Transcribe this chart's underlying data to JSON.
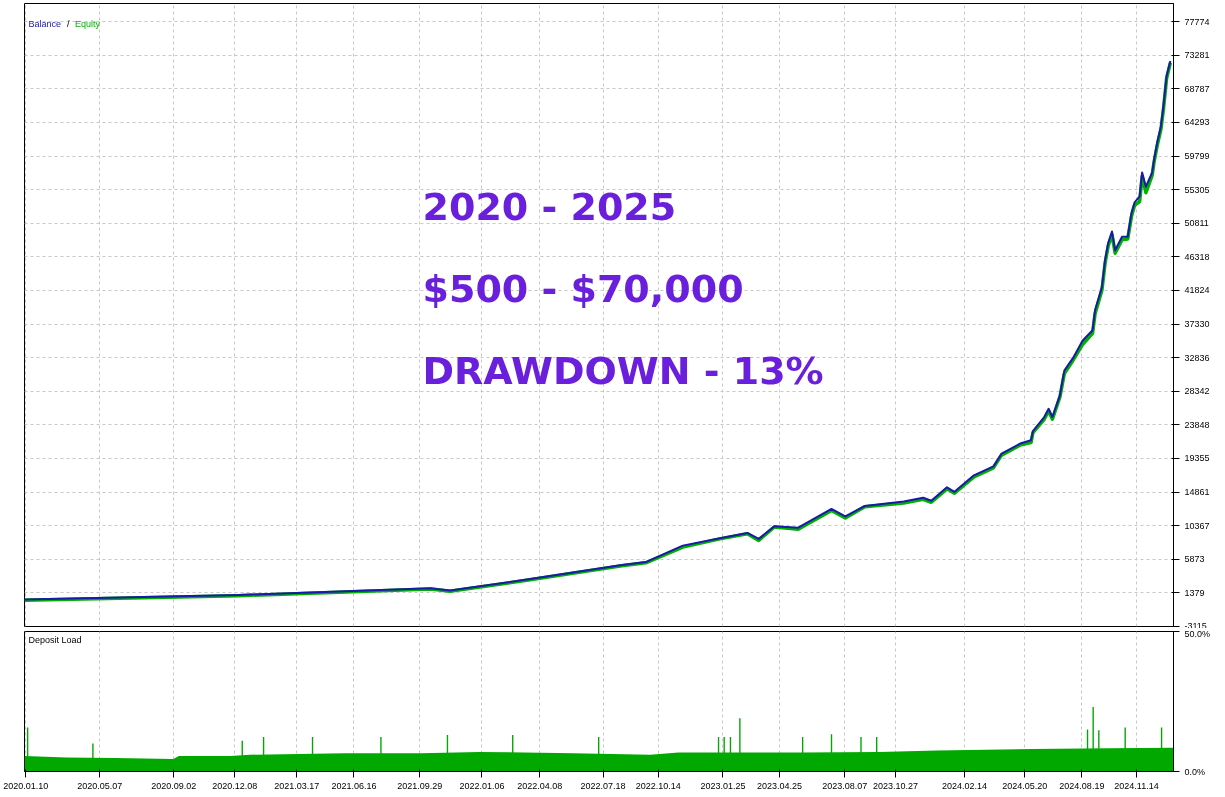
{
  "chart_data": [
    {
      "type": "line",
      "legend": "top left",
      "grid": true,
      "tick_labels": "y",
      "annotations": [
        "/",
        "2020 - 2025",
        "$500 - $70,000",
        "DRAWDOWN -  13%"
      ],
      "x": [
        "2020-01-08",
        "2020-12-14",
        "2021-10-16",
        "2021-11-16",
        "2022-03-21",
        "2022-08-17",
        "2022-09-24",
        "2022-11-22",
        "2023-01-20",
        "2023-03-05",
        "2023-03-23",
        "2023-04-17",
        "2023-05-25",
        "2023-07-17",
        "2023-08-08",
        "2023-09-08",
        "2023-11-09",
        "2023-12-10",
        "2023-12-23",
        "2024-01-17",
        "2024-01-29",
        "2024-02-29",
        "2024-03-31",
        "2024-04-13",
        "2024-05-14",
        "2024-05-30",
        "2024-06-02",
        "2024-06-20",
        "2024-06-27",
        "2024-07-03",
        "2024-07-15",
        "2024-07-22",
        "2024-08-05",
        "2024-08-20",
        "2024-09-05",
        "2024-09-09",
        "2024-09-20",
        "2024-09-25",
        "2024-09-30",
        "2024-10-06",
        "2024-10-11",
        "2024-10-22",
        "2024-10-31",
        "2024-11-06",
        "2024-11-11",
        "2024-11-19",
        "2024-11-23",
        "2024-11-29",
        "2024-12-09",
        "2024-12-12",
        "2024-12-17",
        "2024-12-23",
        "2024-12-27",
        "2025-01-01",
        "2025-01-07"
      ],
      "series": [
        {
          "name": "Equity",
          "color": "#00b000",
          "values": [
            400,
            1000,
            1900,
            1600,
            3100,
            5000,
            5400,
            7500,
            8600,
            9300,
            8400,
            10200,
            9900,
            12400,
            11400,
            12900,
            13400,
            13900,
            13500,
            15300,
            14700,
            16900,
            18100,
            19800,
            21200,
            21500,
            22800,
            24600,
            25700,
            24600,
            27600,
            30700,
            32500,
            34600,
            36100,
            38700,
            41900,
            45500,
            47800,
            49300,
            46800,
            48600,
            48700,
            51700,
            53200,
            53700,
            57100,
            54900,
            57200,
            59000,
            61200,
            63400,
            66100,
            70200,
            72300
          ]
        },
        {
          "name": "Balance",
          "color": "#1a1aa8",
          "values": [
            500,
            1100,
            2000,
            1700,
            3200,
            5100,
            5500,
            7700,
            8700,
            9400,
            8600,
            10300,
            10100,
            12600,
            11600,
            13000,
            13600,
            14100,
            13700,
            15500,
            14900,
            17100,
            18300,
            20000,
            21400,
            21800,
            23000,
            24900,
            26000,
            24900,
            27800,
            31100,
            32800,
            35100,
            36500,
            39200,
            42300,
            45900,
            48200,
            49700,
            47200,
            49000,
            49000,
            52200,
            53600,
            54400,
            57600,
            55700,
            57600,
            59300,
            61600,
            63800,
            66500,
            70500,
            72500
          ]
        }
      ],
      "xlim": [
        "2020-01-08",
        "2025-01-12"
      ],
      "ylim": [
        -3115,
        80200
      ],
      "yticks": [
        -3115,
        1379,
        5873,
        10367,
        14861,
        19355,
        23848,
        28342,
        32836,
        37330,
        41824,
        46318,
        50811,
        55305,
        59799,
        64293,
        68787,
        73281,
        77774
      ]
    },
    {
      "type": "area",
      "title": "Deposit Load",
      "grid": true,
      "series": [
        {
          "color": "#00a800",
          "x": [
            "2020-01-08",
            "2020-03-15",
            "2020-06-01",
            "2020-09-01",
            "2020-09-10",
            "2020-12-01",
            "2021-01-01",
            "2021-06-01",
            "2021-10-01",
            "2022-01-01",
            "2022-06-01",
            "2022-10-01",
            "2022-11-15",
            "2023-06-01",
            "2023-10-01",
            "2024-01-01",
            "2024-06-01",
            "2024-10-01",
            "2025-01-12"
          ],
          "values": [
            5.5,
            5.0,
            4.8,
            4.5,
            5.5,
            5.5,
            6.0,
            6.5,
            6.5,
            7.0,
            6.5,
            6.0,
            6.8,
            6.8,
            7.0,
            7.5,
            8.0,
            8.3,
            8.5
          ]
        },
        {
          "type": "bar",
          "color": "#00a800",
          "x": [
            "2020-01-13",
            "2020-04-26",
            "2020-12-20",
            "2021-01-23",
            "2021-04-11",
            "2021-07-29",
            "2021-11-12",
            "2022-02-24",
            "2022-07-11",
            "2023-01-18",
            "2023-01-27",
            "2023-02-06",
            "2023-02-21",
            "2023-06-01",
            "2023-07-17",
            "2023-09-02",
            "2023-09-27",
            "2024-08-28",
            "2024-09-06",
            "2024-09-15",
            "2024-10-27",
            "2024-12-24"
          ],
          "values": [
            15.7,
            10,
            11,
            12.3,
            12.3,
            12.3,
            13,
            13,
            12.3,
            12.3,
            12.3,
            12.3,
            19,
            12.3,
            13.3,
            12.3,
            12.3,
            15,
            23,
            14.7,
            15.7,
            15.7
          ]
        }
      ],
      "xlim": [
        "2020-01-08",
        "2025-01-12"
      ],
      "xticks": [
        {
          "value": "2020-01-10",
          "label": "2020.01.10"
        },
        {
          "value": "2020-05-07",
          "label": "2020.05.07"
        },
        {
          "value": "2020-09-02",
          "label": "2020.09.02"
        },
        {
          "value": "2020-12-08",
          "label": "2020.12.08"
        },
        {
          "value": "2021-03-17",
          "label": "2021.03.17"
        },
        {
          "value": "2021-06-16",
          "label": "2021.06.16"
        },
        {
          "value": "2021-09-29",
          "label": "2021.09.29"
        },
        {
          "value": "2022-01-06",
          "label": "2022.01.06"
        },
        {
          "value": "2022-04-08",
          "label": "2022.04.08"
        },
        {
          "value": "2022-07-18",
          "label": "2022.07.18"
        },
        {
          "value": "2022-10-14",
          "label": "2022.10.14"
        },
        {
          "value": "2023-01-25",
          "label": "2023.01.25"
        },
        {
          "value": "2023-04-25",
          "label": "2023.04.25"
        },
        {
          "value": "2023-08-07",
          "label": "2023.08.07"
        },
        {
          "value": "2023-10-27",
          "label": "2023.10.27"
        },
        {
          "value": "2024-02-14",
          "label": "2024.02.14"
        },
        {
          "value": "2024-05-20",
          "label": "2024.05.20"
        },
        {
          "value": "2024-08-19",
          "label": "2024.08.19"
        },
        {
          "value": "2024-11-14",
          "label": "2024.11.14"
        }
      ],
      "ylim": [
        0,
        50
      ],
      "yticks": [
        {
          "value": 0,
          "label": "0.0%"
        },
        {
          "value": 50,
          "label": "50.0%"
        }
      ]
    }
  ]
}
